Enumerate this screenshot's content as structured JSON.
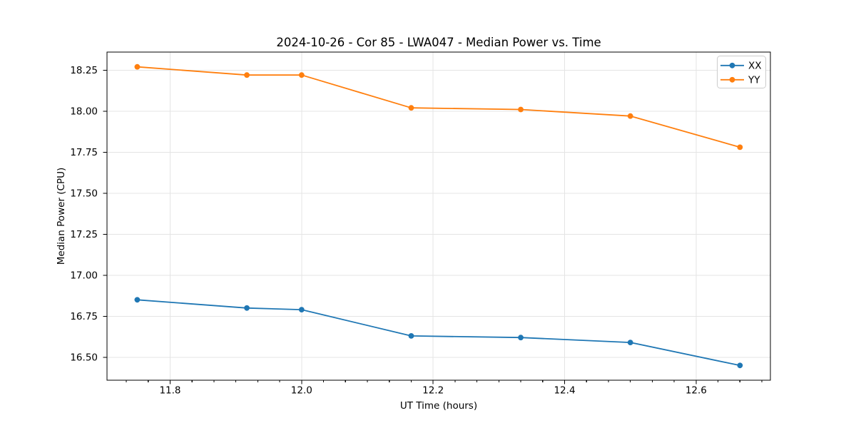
{
  "title": "2024-10-26 - Cor 85 - LWA047 - Median Power vs. Time",
  "chart_data": {
    "type": "line",
    "title": "2024-10-26 - Cor 85 - LWA047 - Median Power vs. Time",
    "xlabel": "UT Time (hours)",
    "ylabel": "Median Power (CPU)",
    "x": [
      11.75,
      11.9167,
      12.0,
      12.1667,
      12.3333,
      12.5,
      12.6667
    ],
    "series": [
      {
        "name": "XX",
        "color": "#1f77b4",
        "values": [
          16.85,
          16.8,
          16.79,
          16.63,
          16.62,
          16.59,
          16.45
        ]
      },
      {
        "name": "YY",
        "color": "#ff7f0e",
        "values": [
          18.27,
          18.22,
          18.22,
          18.02,
          18.01,
          17.97,
          17.78
        ]
      }
    ],
    "xlim": [
      11.704,
      12.713
    ],
    "ylim": [
      16.36,
      18.36
    ],
    "x_major_ticks": [
      11.8,
      12.0,
      12.2,
      12.4,
      12.6
    ],
    "x_tick_labels": [
      "11.8",
      "12.0",
      "12.2",
      "12.4",
      "12.6"
    ],
    "x_minor_tick_step": 0.033333,
    "y_major_ticks": [
      16.5,
      16.75,
      17.0,
      17.25,
      17.5,
      17.75,
      18.0,
      18.25
    ],
    "y_tick_labels": [
      "16.50",
      "16.75",
      "17.00",
      "17.25",
      "17.50",
      "17.75",
      "18.00",
      "18.25"
    ],
    "grid": true,
    "legend": {
      "position": "top-right",
      "entries": [
        "XX",
        "YY"
      ]
    },
    "colors": {
      "background": "#ffffff",
      "spine": "#000000",
      "grid": "#e4e4e4",
      "tick": "#000000",
      "text": "#000000",
      "legend_border": "#cccccc",
      "legend_background": "#ffffff"
    }
  }
}
